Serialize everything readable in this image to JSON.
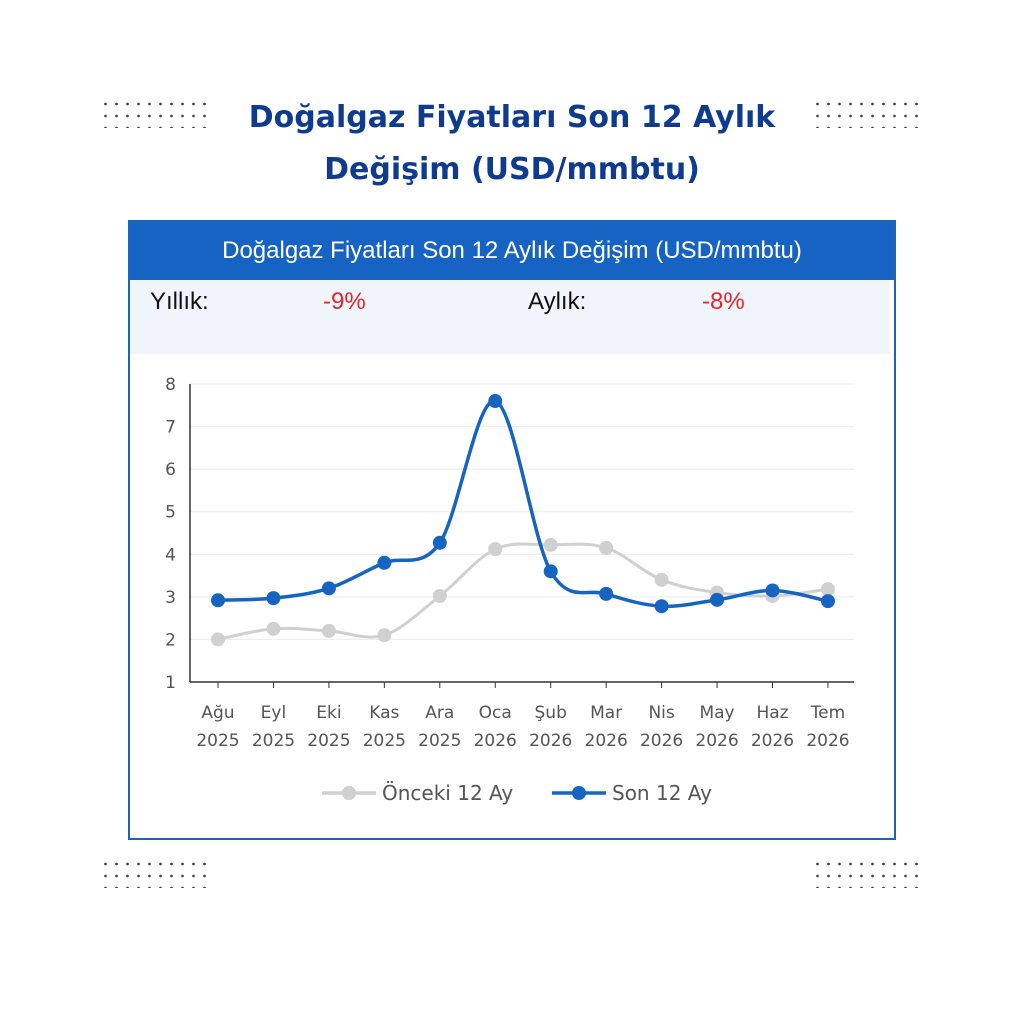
{
  "page": {
    "title_line1": "Doğalgaz Fiyatları Son 12 Aylık",
    "title_line2": "Değişim (USD/mmbtu)"
  },
  "card": {
    "header": "Doğalgaz Fiyatları Son 12 Aylık Değişim (USD/mmbtu)",
    "annual_label": "Yıllık:",
    "annual_value": "-9%",
    "monthly_label": "Aylık:",
    "monthly_value": "-8%"
  },
  "colors": {
    "header_bg": "#1763c3",
    "title": "#0f3b8f",
    "current_series": "#1565c0",
    "previous_series": "#d0d0d0",
    "negative_value": "#e8232a"
  },
  "chart_data": {
    "type": "line",
    "title": "",
    "xlabel": "",
    "ylabel": "",
    "ylim": [
      1,
      8
    ],
    "yticks": [
      1,
      2,
      3,
      4,
      5,
      6,
      7,
      8
    ],
    "grid": true,
    "legend_position": "bottom",
    "categories": [
      [
        "Ağu",
        "2025"
      ],
      [
        "Eyl",
        "2025"
      ],
      [
        "Eki",
        "2025"
      ],
      [
        "Kas",
        "2025"
      ],
      [
        "Ara",
        "2025"
      ],
      [
        "Oca",
        "2026"
      ],
      [
        "Şub",
        "2026"
      ],
      [
        "Mar",
        "2026"
      ],
      [
        "Nis",
        "2026"
      ],
      [
        "May",
        "2026"
      ],
      [
        "Haz",
        "2026"
      ],
      [
        "Tem",
        "2026"
      ]
    ],
    "series": [
      {
        "name": "Önceki 12 Ay",
        "color": "#d0d0d0",
        "values": [
          2.0,
          2.25,
          2.2,
          2.1,
          3.02,
          4.12,
          4.22,
          4.15,
          3.4,
          3.1,
          3.02,
          3.18
        ]
      },
      {
        "name": "Son 12 Ay",
        "color": "#1565c0",
        "values": [
          2.92,
          2.97,
          3.2,
          3.8,
          4.27,
          7.6,
          3.6,
          3.07,
          2.78,
          2.93,
          3.15,
          2.9
        ]
      }
    ]
  }
}
